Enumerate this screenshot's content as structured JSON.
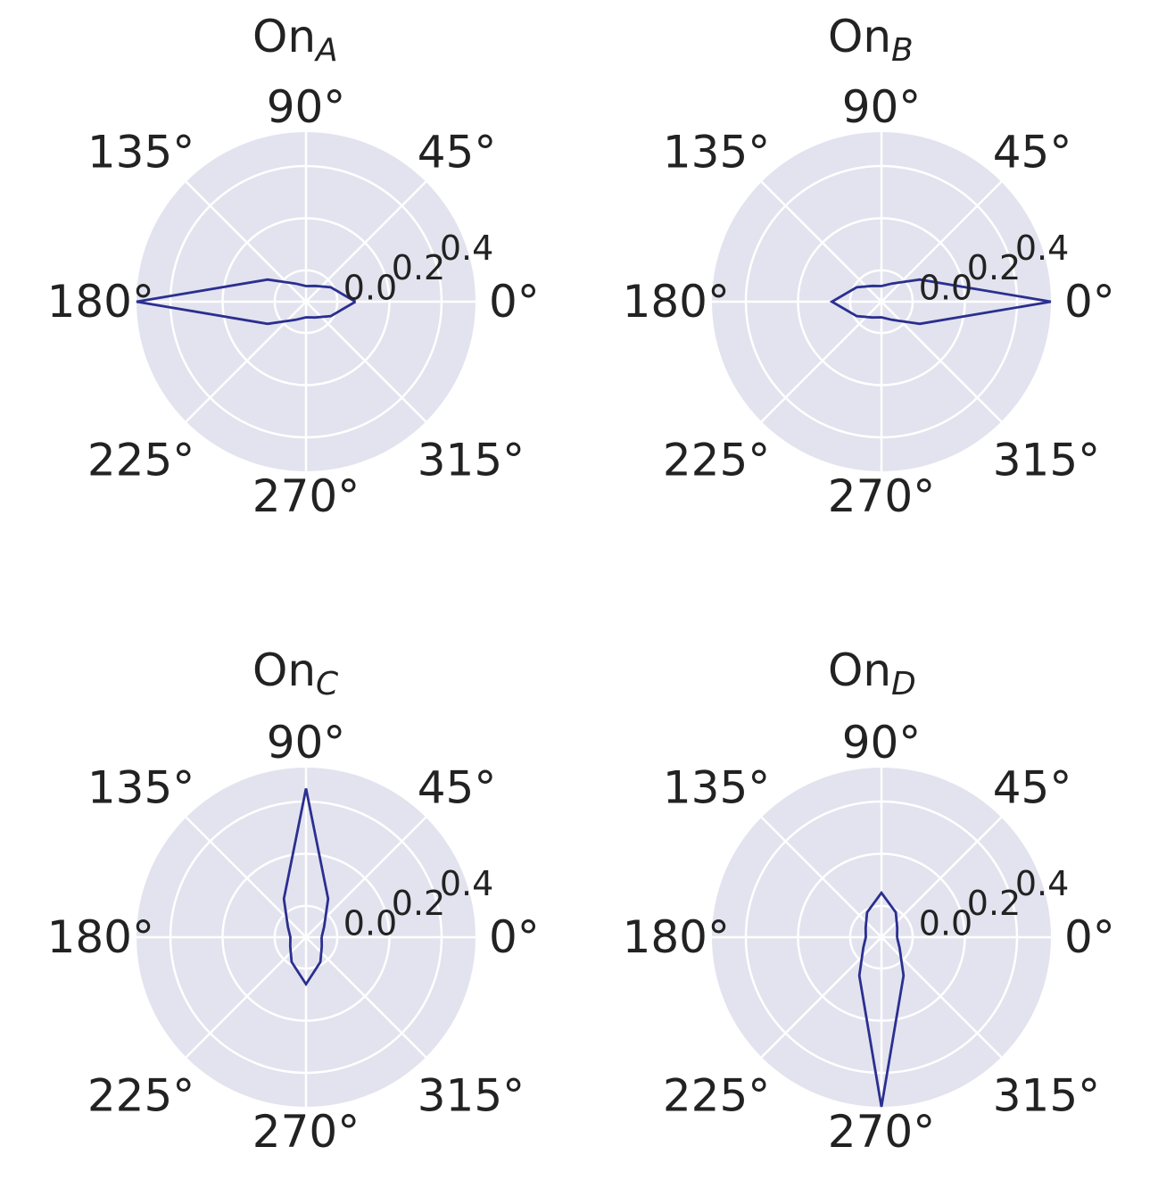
{
  "chart_data": [
    {
      "type": "polar-line",
      "title_main": "On",
      "title_sub": "A",
      "angle_labels": [
        "0°",
        "45°",
        "90°",
        "135°",
        "180°",
        "225°",
        "270°",
        "315°"
      ],
      "radial_ticks": [
        "0.0",
        "0.2",
        "0.4"
      ],
      "rlim": [
        -0.12,
        0.53
      ],
      "grid": true,
      "series_color": "#2b2f8f",
      "theta_deg": [
        0,
        30,
        60,
        90,
        120,
        150,
        180,
        210,
        240,
        270,
        300,
        330
      ],
      "r": [
        0.07,
        -0.01,
        -0.05,
        -0.06,
        -0.04,
        0.05,
        0.53,
        0.05,
        -0.04,
        -0.06,
        -0.05,
        -0.01
      ]
    },
    {
      "type": "polar-line",
      "title_main": "On",
      "title_sub": "B",
      "angle_labels": [
        "0°",
        "45°",
        "90°",
        "135°",
        "180°",
        "225°",
        "270°",
        "315°"
      ],
      "radial_ticks": [
        "0.0",
        "0.2",
        "0.4"
      ],
      "rlim": [
        -0.12,
        0.53
      ],
      "grid": true,
      "series_color": "#2b2f8f",
      "theta_deg": [
        0,
        30,
        60,
        90,
        120,
        150,
        180,
        210,
        240,
        270,
        300,
        330
      ],
      "r": [
        0.53,
        0.05,
        -0.04,
        -0.06,
        -0.05,
        -0.01,
        0.07,
        -0.01,
        -0.05,
        -0.06,
        -0.04,
        0.05
      ]
    },
    {
      "type": "polar-line",
      "title_main": "On",
      "title_sub": "C",
      "angle_labels": [
        "0°",
        "45°",
        "90°",
        "135°",
        "180°",
        "225°",
        "270°",
        "315°"
      ],
      "radial_ticks": [
        "0.0",
        "0.2",
        "0.4"
      ],
      "rlim": [
        -0.12,
        0.53
      ],
      "grid": true,
      "series_color": "#2b2f8f",
      "theta_deg": [
        0,
        30,
        60,
        90,
        120,
        150,
        180,
        210,
        240,
        270,
        300,
        330
      ],
      "r": [
        -0.06,
        -0.04,
        0.05,
        0.45,
        0.05,
        -0.04,
        -0.06,
        -0.05,
        -0.01,
        0.06,
        -0.01,
        -0.05
      ]
    },
    {
      "type": "polar-line",
      "title_main": "On",
      "title_sub": "D",
      "angle_labels": [
        "0°",
        "45°",
        "90°",
        "135°",
        "180°",
        "225°",
        "270°",
        "315°"
      ],
      "radial_ticks": [
        "0.0",
        "0.2",
        "0.4"
      ],
      "rlim": [
        -0.12,
        0.53
      ],
      "grid": true,
      "series_color": "#2b2f8f",
      "theta_deg": [
        0,
        30,
        60,
        90,
        120,
        150,
        180,
        210,
        240,
        270,
        300,
        330
      ],
      "r": [
        -0.06,
        -0.05,
        -0.01,
        0.05,
        -0.01,
        -0.05,
        -0.06,
        -0.04,
        0.05,
        0.53,
        0.05,
        -0.04
      ]
    }
  ]
}
